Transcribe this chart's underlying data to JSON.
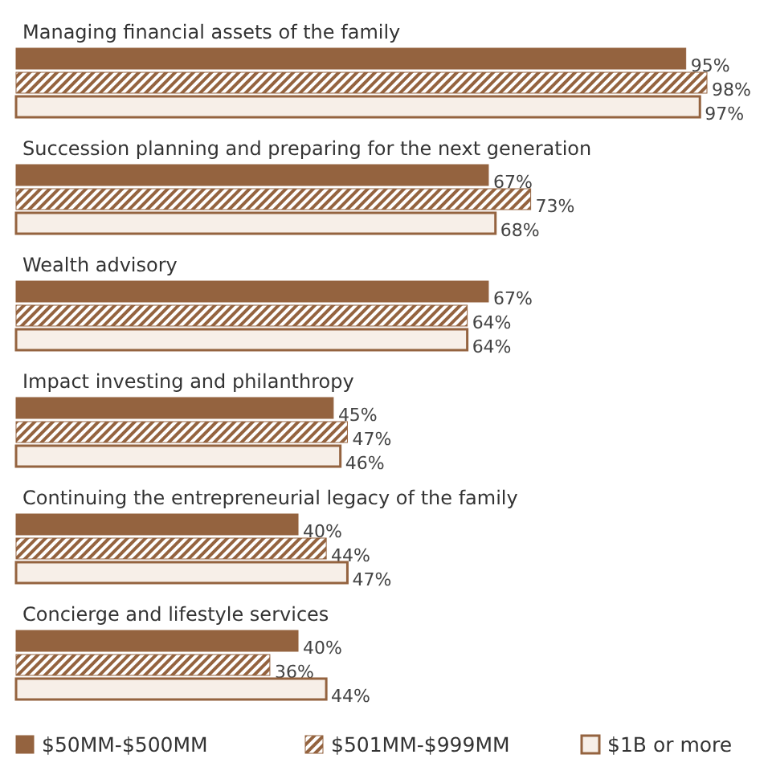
{
  "chart_data": {
    "type": "bar",
    "orientation": "horizontal",
    "categories": [
      "Managing financial assets of the family",
      "Succession planning and preparing for the next generation",
      "Wealth advisory",
      "Impact investing and philanthropy",
      "Continuing the entrepreneurial legacy of the family",
      "Concierge and lifestyle services"
    ],
    "series": [
      {
        "name": "$50MM-$500MM",
        "color": "#94633f",
        "values": [
          95,
          67,
          67,
          45,
          40,
          40
        ],
        "value_labels": [
          "95%",
          "67%",
          "67%",
          "45%",
          "40%",
          "40%"
        ]
      },
      {
        "name": "$501MM-$999MM",
        "color": "#94633f",
        "values": [
          98,
          73,
          64,
          47,
          44,
          36
        ],
        "value_labels": [
          "98%",
          "73%",
          "64%",
          "47%",
          "44%",
          "36%"
        ]
      },
      {
        "name": "$1B or more",
        "color": "#f7efe8",
        "values": [
          97,
          68,
          64,
          46,
          47,
          44
        ],
        "value_labels": [
          "97%",
          "68%",
          "64%",
          "46%",
          "47%",
          "44%"
        ]
      }
    ],
    "legend": "bottom"
  }
}
